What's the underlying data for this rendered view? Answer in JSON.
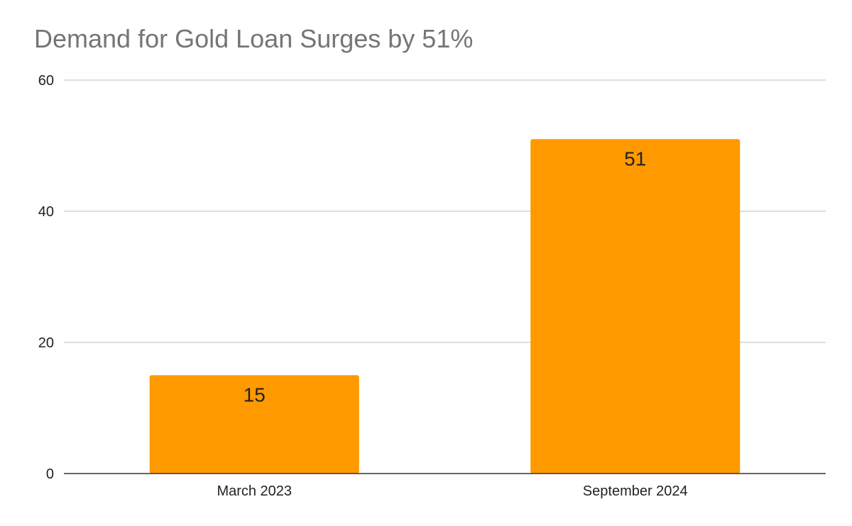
{
  "chart_data": {
    "type": "bar",
    "title": "Demand for Gold Loan Surges by 51%",
    "categories": [
      "March 2023",
      "September 2024"
    ],
    "values": [
      15,
      51
    ],
    "data_labels": [
      "15",
      "51"
    ],
    "xlabel": "",
    "ylabel": "",
    "ylim": [
      0,
      60
    ],
    "yticks": [
      "0",
      "20",
      "40",
      "60"
    ],
    "grid": true,
    "legend": "none",
    "bar_color": "#ff9900",
    "gridline_color": "#cccccc",
    "axis_color": "#333333"
  }
}
